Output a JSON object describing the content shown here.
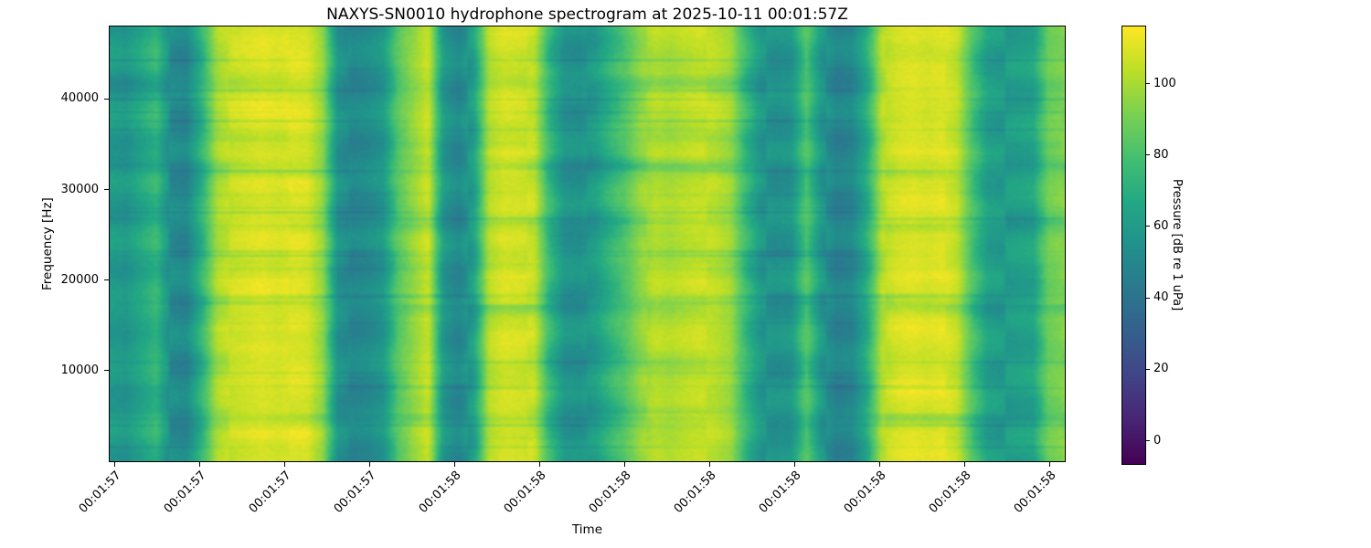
{
  "chart_data": {
    "type": "heatmap",
    "subtype": "spectrogram",
    "title": "NAXYS-SN0010 hydrophone spectrogram at 2025-10-11 00:01:57Z",
    "xlabel": "Time",
    "ylabel": "Frequency [Hz]",
    "x_tick_labels": [
      "00:01:57",
      "00:01:57",
      "00:01:57",
      "00:01:57",
      "00:01:58",
      "00:01:58",
      "00:01:58",
      "00:01:58",
      "00:01:58",
      "00:01:58",
      "00:01:58",
      "00:01:58"
    ],
    "y_tick_values": [
      10000,
      20000,
      30000,
      40000
    ],
    "y_tick_labels": [
      "10000",
      "20000",
      "30000",
      "40000"
    ],
    "y_range_hz": [
      0,
      48000
    ],
    "grid": false,
    "colormap": "viridis",
    "colormap_anchors": [
      "#440154",
      "#482475",
      "#414487",
      "#355f8d",
      "#2a788e",
      "#21918c",
      "#22a884",
      "#44bf70",
      "#7ad151",
      "#bddf26",
      "#fde725"
    ],
    "colorbar": {
      "label": "Pressure [dB re 1 uPa]",
      "tick_values": [
        0,
        20,
        40,
        60,
        80,
        100
      ],
      "tick_labels": [
        "0",
        "20",
        "40",
        "60",
        "80",
        "100"
      ],
      "vmin_db": -6.5,
      "vmax_db": 116
    },
    "time_bins": 64,
    "freq_bins": 32,
    "column_profile_db": [
      60,
      58,
      66,
      74,
      52,
      50,
      72,
      100,
      106,
      108,
      110,
      108,
      110,
      109,
      96,
      56,
      50,
      52,
      58,
      84,
      96,
      106,
      58,
      50,
      62,
      102,
      108,
      107,
      105,
      74,
      56,
      55,
      60,
      72,
      82,
      95,
      102,
      100,
      103,
      105,
      103,
      98,
      75,
      58,
      55,
      57,
      82,
      58,
      48,
      50,
      68,
      102,
      108,
      110,
      108,
      110,
      104,
      80,
      62,
      60,
      62,
      64,
      88,
      92
    ],
    "row_profile_db": [
      3,
      1,
      -2,
      2,
      -12,
      2,
      3,
      0,
      -5,
      3,
      -16,
      1,
      3,
      2,
      -10,
      3,
      1,
      -3,
      4,
      2,
      -14,
      2,
      3,
      1,
      -6,
      2,
      3,
      -1,
      -11,
      3,
      2,
      1
    ]
  }
}
